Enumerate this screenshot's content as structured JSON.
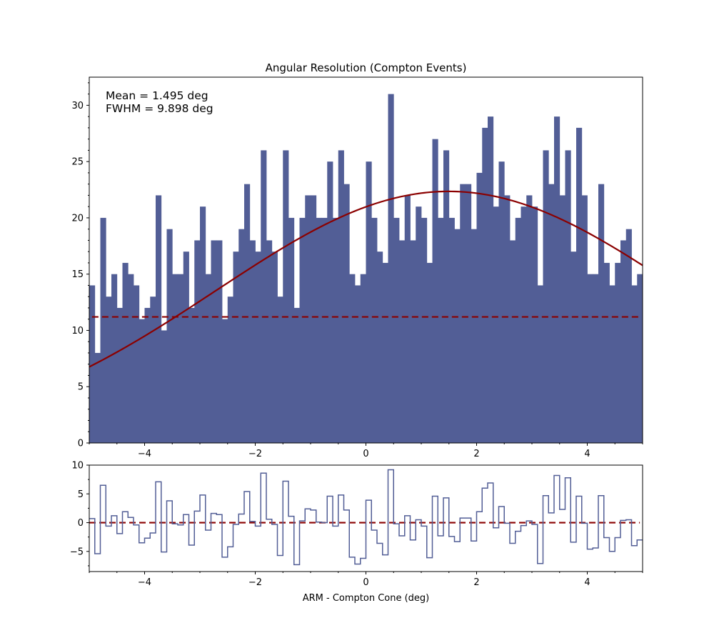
{
  "chart_data": [
    {
      "type": "bar",
      "title": "Angular Resolution (Compton Events)",
      "annotations": [
        "Mean = 1.495 deg",
        "FWHM = 9.898 deg"
      ],
      "xlim": [
        -5,
        5
      ],
      "ylim": [
        0,
        32.5
      ],
      "xticks": [
        -4,
        -2,
        0,
        2,
        4
      ],
      "yticks": [
        0,
        5,
        10,
        15,
        20,
        25,
        30
      ],
      "bin_width": 0.1,
      "bin_start": -5.0,
      "values": [
        14,
        8,
        20,
        13,
        15,
        12,
        16,
        15,
        14,
        11,
        12,
        13,
        22,
        10,
        19,
        15,
        15,
        17,
        12,
        18,
        21,
        15,
        18,
        18,
        11,
        13,
        17,
        19,
        23,
        18,
        17,
        26,
        18,
        17,
        13,
        26,
        20,
        12,
        20,
        22,
        22,
        20,
        20,
        25,
        20,
        26,
        23,
        15,
        14,
        15,
        25,
        20,
        17,
        16,
        31,
        20,
        18,
        22,
        18,
        21,
        20,
        16,
        27,
        20,
        26,
        20,
        19,
        23,
        23,
        19,
        24,
        28,
        29,
        21,
        25,
        22,
        18,
        20,
        21,
        22,
        21,
        14,
        26,
        23,
        29,
        22,
        26,
        17,
        28,
        22,
        15,
        15,
        23,
        16,
        14,
        16,
        18,
        19,
        14,
        15
      ],
      "fit_curve": {
        "type": "gaussian",
        "mean": 1.495,
        "amplitude": 22.35,
        "sigma": 4.2
      },
      "baseline": 11.2,
      "grid": false,
      "colors": {
        "bars": "#525e96",
        "fit": "#8b0000",
        "baseline": "#8b0000"
      }
    },
    {
      "type": "line",
      "style": "step",
      "xlabel": "ARM - Compton Cone (deg)",
      "xlim": [
        -5,
        5
      ],
      "ylim": [
        -8.5,
        10
      ],
      "xticks": [
        -4,
        -2,
        0,
        2,
        4
      ],
      "yticks": [
        -5,
        0,
        5,
        10
      ],
      "residuals": [
        0.7,
        -5.4,
        6.5,
        -0.6,
        1.2,
        -1.9,
        1.9,
        0.9,
        -0.4,
        -3.5,
        -2.7,
        -1.8,
        7.1,
        -5.1,
        3.8,
        -0.2,
        -0.4,
        1.4,
        -3.9,
        2.0,
        4.8,
        -1.3,
        1.6,
        1.4,
        -6.0,
        -4.2,
        -0.3,
        1.5,
        5.4,
        0.2,
        -0.6,
        8.6,
        0.6,
        -0.3,
        -5.7,
        7.2,
        1.1,
        -7.3,
        0.3,
        2.4,
        2.2,
        0.1,
        0.0,
        4.6,
        -0.6,
        4.8,
        2.2,
        -6.0,
        -7.2,
        -6.2,
        3.9,
        -1.3,
        -3.6,
        -5.6,
        9.2,
        -0.2,
        -2.3,
        1.2,
        -3.0,
        0.5,
        -0.6,
        -6.1,
        4.6,
        -2.3,
        4.3,
        -2.4,
        -3.3,
        0.8,
        0.8,
        -3.2,
        1.9,
        6.0,
        6.9,
        -0.9,
        2.8,
        -0.1,
        -3.6,
        -1.5,
        -0.5,
        0.3,
        -0.3,
        -7.1,
        4.7,
        1.7,
        8.2,
        2.3,
        7.8,
        -3.4,
        4.6,
        -0.1,
        -4.6,
        -4.4,
        4.7,
        -2.6,
        -5.0,
        -2.6,
        0.4,
        0.5,
        -4.0,
        -3.0
      ],
      "zero_line": 0,
      "grid": false,
      "colors": {
        "step": "#525e96",
        "zero_line": "#8b0000"
      }
    }
  ]
}
